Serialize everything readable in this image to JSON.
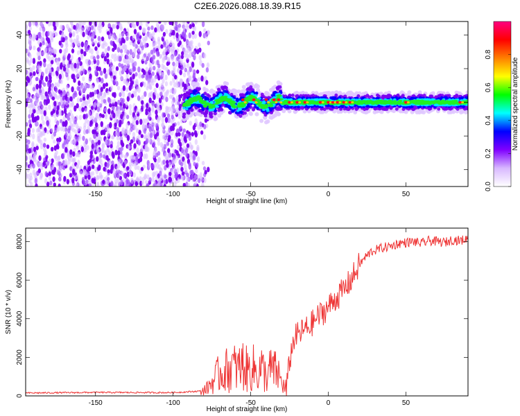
{
  "title": "C2E6.2026.088.18.39.R15",
  "chart_data": [
    {
      "type": "heatmap",
      "xlabel": "Height of straight line (km)",
      "ylabel": "Frequency (Hz)",
      "xlim": [
        -195,
        90
      ],
      "ylim": [
        -50,
        48
      ],
      "xticks": [
        -150,
        -100,
        -50,
        0,
        50
      ],
      "yticks": [
        -40,
        -20,
        0,
        20,
        40
      ],
      "ytick_labels": [
        "-40",
        "-20",
        "0",
        "20",
        "40"
      ],
      "noise_region_x": [
        -195,
        -85
      ],
      "signal_region_x": [
        -93,
        90
      ],
      "signal_center_hz": 0,
      "colorbar": {
        "label": "Normalized spectral amplitude",
        "range": [
          0.0,
          1.0
        ],
        "ticks": [
          0.0,
          0.2,
          0.4,
          0.6,
          0.8
        ],
        "tick_labels": [
          "0.0",
          "0.2",
          "0.4",
          "0.6",
          "0.8"
        ],
        "colors": [
          "#ffffff",
          "#d8b8ff",
          "#8000ff",
          "#0000ff",
          "#00ffff",
          "#00ff00",
          "#ffff00",
          "#ff8000",
          "#ff0000",
          "#ff0080"
        ]
      }
    },
    {
      "type": "line",
      "xlabel": "Height of straight line (km)",
      "ylabel": "SNR (10 * v/v)",
      "xlim": [
        -195,
        90
      ],
      "ylim": [
        0,
        8700
      ],
      "xticks": [
        -150,
        -100,
        -50,
        0,
        50
      ],
      "yticks": [
        0,
        2000,
        4000,
        6000,
        8000
      ],
      "ytick_labels": [
        "0",
        "2000",
        "4000",
        "6000",
        "8000"
      ],
      "color": "#ee3333",
      "series": [
        {
          "name": "SNR",
          "x": [
            -195,
            -150,
            -100,
            -82,
            -78,
            -74,
            -70,
            -66,
            -62,
            -58,
            -55,
            -52,
            -49,
            -46,
            -43,
            -40,
            -37,
            -34,
            -32,
            -30,
            -28,
            -27,
            -25,
            -22,
            -19,
            -16,
            -12,
            -8,
            -4,
            0,
            4,
            8,
            12,
            16,
            20,
            24,
            28,
            32,
            36,
            40,
            45,
            50,
            55,
            60,
            65,
            70,
            75,
            80,
            85,
            90
          ],
          "y": [
            150,
            180,
            170,
            250,
            400,
            800,
            1200,
            1300,
            1500,
            1400,
            1600,
            1300,
            1500,
            1200,
            1450,
            1000,
            1400,
            1250,
            1100,
            700,
            400,
            300,
            1800,
            3000,
            3200,
            3400,
            3600,
            4000,
            4300,
            4600,
            5000,
            5300,
            5700,
            6200,
            6800,
            7200,
            7500,
            7600,
            7700,
            7750,
            7900,
            7950,
            8000,
            7900,
            8050,
            8000,
            7950,
            8100,
            8050,
            8150
          ]
        }
      ]
    }
  ]
}
